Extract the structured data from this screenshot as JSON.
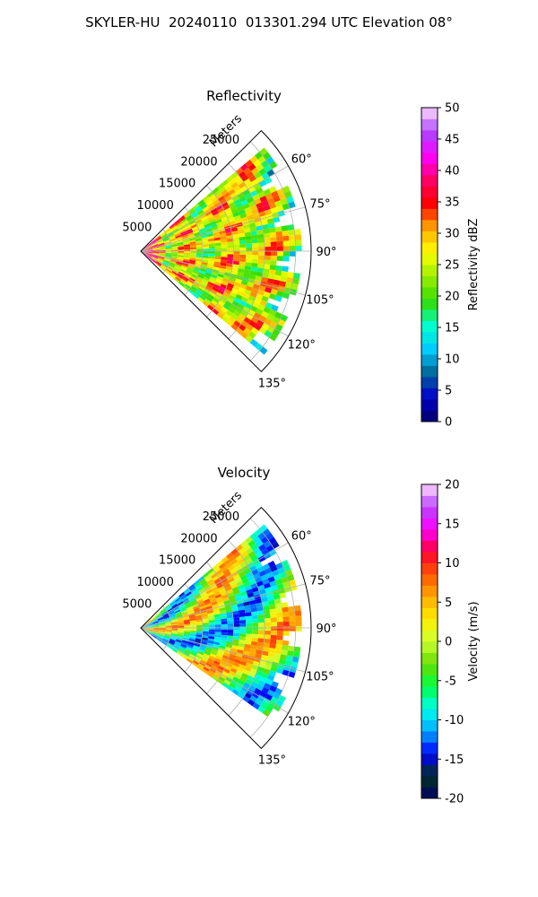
{
  "figure": {
    "title": "SKYLER-HU  20240110  013301.294 UTC Elevation 08°"
  },
  "chart_data": [
    {
      "type": "heatmap",
      "title": "Reflectivity",
      "radial_label": "Meters",
      "radial_ticks": [
        "5000",
        "10000",
        "15000",
        "20000",
        "25000"
      ],
      "radial_tick_values": [
        5000,
        10000,
        15000,
        20000,
        25000
      ],
      "rlim": [
        0,
        27500
      ],
      "azimuth_ticks": [
        "60°",
        "75°",
        "90°",
        "105°",
        "120°",
        "135°"
      ],
      "azimuth_tick_values": [
        60,
        75,
        90,
        105,
        120,
        135
      ],
      "azimuth_range": [
        45,
        135
      ],
      "data_extent_azimuth": [
        50,
        130
      ],
      "grid": true,
      "colorbar": {
        "label": "Reflectivity dBZ",
        "range": [
          0,
          50
        ],
        "ticks": [
          "0",
          "5",
          "10",
          "15",
          "20",
          "25",
          "30",
          "35",
          "40",
          "45",
          "50"
        ],
        "tick_values": [
          0,
          5,
          10,
          15,
          20,
          25,
          30,
          35,
          40,
          45,
          50
        ],
        "colors": [
          "#000066",
          "#0000cc",
          "#006699",
          "#00ccff",
          "#00ffcc",
          "#33dd00",
          "#99ee00",
          "#ffff00",
          "#ffaa00",
          "#ff0000",
          "#ff0066",
          "#ff00ff",
          "#aa44ff",
          "#ffddff"
        ]
      }
    },
    {
      "type": "heatmap",
      "title": "Velocity",
      "radial_label": "Meters",
      "radial_ticks": [
        "5000",
        "10000",
        "15000",
        "20000",
        "25000"
      ],
      "radial_tick_values": [
        5000,
        10000,
        15000,
        20000,
        25000
      ],
      "rlim": [
        0,
        27500
      ],
      "azimuth_ticks": [
        "60°",
        "75°",
        "90°",
        "105°",
        "120°",
        "135°"
      ],
      "azimuth_tick_values": [
        60,
        75,
        90,
        105,
        120,
        135
      ],
      "azimuth_range": [
        45,
        135
      ],
      "data_extent_azimuth": [
        50,
        125
      ],
      "grid": true,
      "colorbar": {
        "label": "Velocity (m/s)",
        "range": [
          -20,
          20
        ],
        "ticks": [
          "-20",
          "-15",
          "-10",
          "-5",
          "0",
          "5",
          "10",
          "15",
          "20"
        ],
        "tick_values": [
          -20,
          -15,
          -10,
          -5,
          0,
          5,
          10,
          15,
          20
        ],
        "colors": [
          "#000066",
          "#003322",
          "#0000ff",
          "#00aaff",
          "#00ffee",
          "#00ff44",
          "#66dd00",
          "#ccff33",
          "#ffee00",
          "#ffaa00",
          "#ff5500",
          "#ff0033",
          "#ff00ff",
          "#bb44ff",
          "#ffddff"
        ]
      }
    }
  ]
}
